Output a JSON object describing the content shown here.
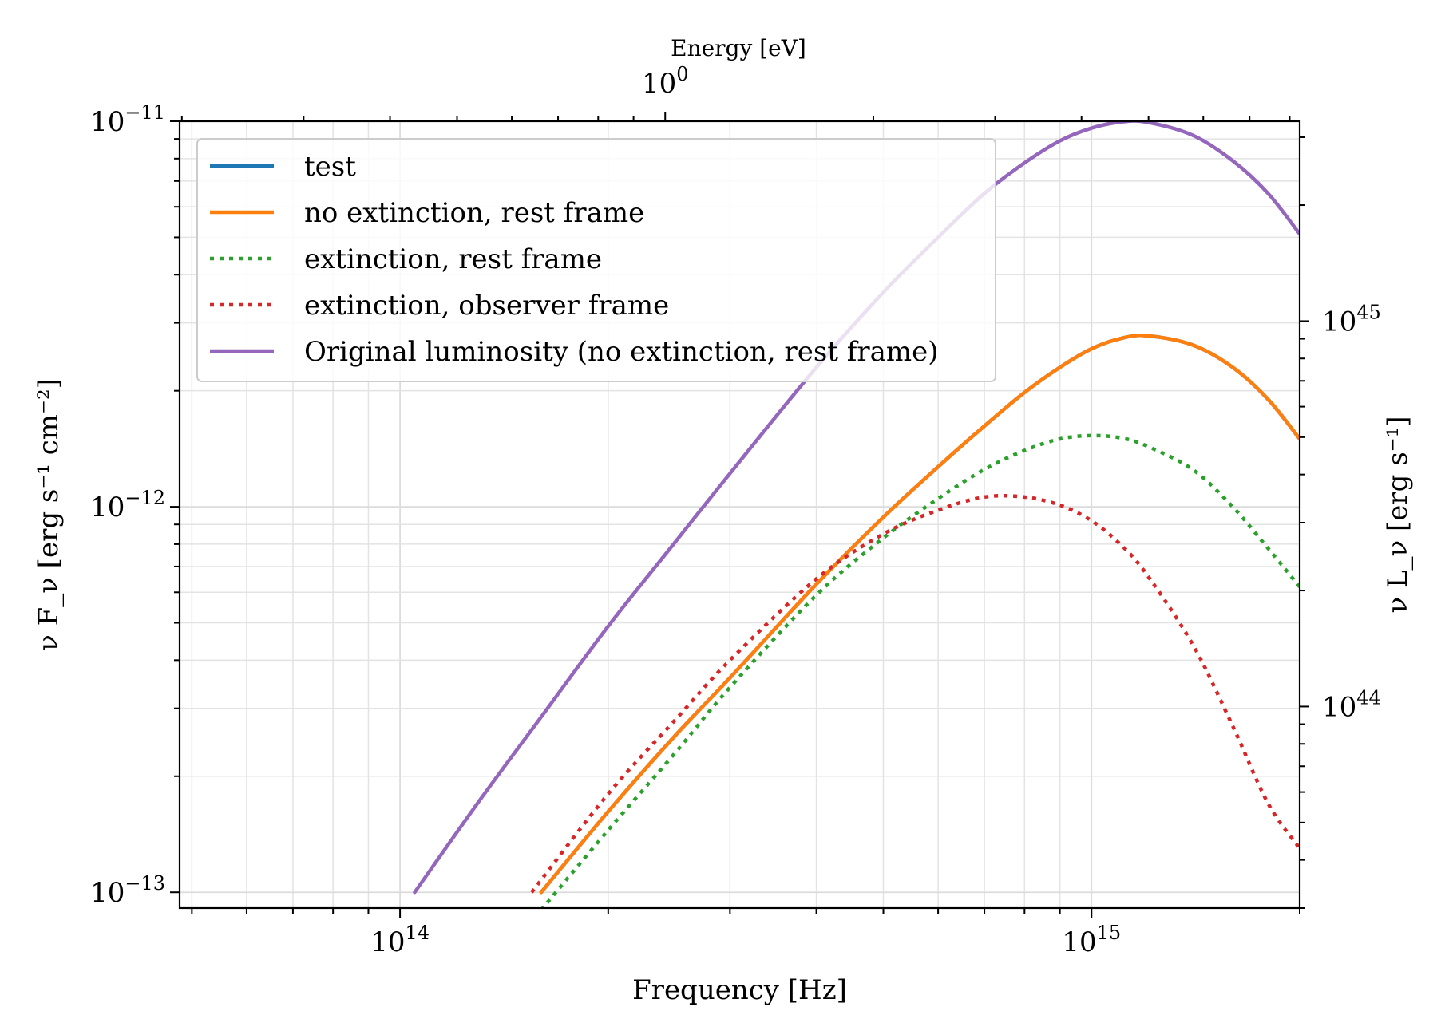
{
  "chart_data": {
    "type": "line",
    "xlabel": "Frequency [Hz]",
    "ylabel": "ν F_ν [erg s⁻¹ cm⁻²]",
    "y2label": "ν L_ν [erg s⁻¹]",
    "top_xlabel": "Energy [eV]",
    "xscale": "log",
    "yscale": "log",
    "xlim": [
      48000000000000.0,
      2000000000000000.0
    ],
    "ylim": [
      9.1e-14,
      1e-11
    ],
    "y2lim": [
      3e+43,
      3.3e+45
    ],
    "grid": true,
    "legend_position": "top-left",
    "x_ticks": [
      {
        "value": 100000000000000.0,
        "base": "10",
        "exp": "14"
      },
      {
        "value": 1000000000000000.0,
        "base": "10",
        "exp": "15"
      }
    ],
    "y_ticks": [
      {
        "value": 1e-13,
        "base": "10",
        "exp": "−13"
      },
      {
        "value": 1e-12,
        "base": "10",
        "exp": "−12"
      },
      {
        "value": 1e-11,
        "base": "10",
        "exp": "−11"
      }
    ],
    "y2_ticks": [
      {
        "value": 1e+44,
        "base": "10",
        "exp": "44"
      },
      {
        "value": 1e+45,
        "base": "10",
        "exp": "45"
      }
    ],
    "top_ticks": [
      {
        "value_eV": 1,
        "base": "10",
        "exp": "0"
      }
    ],
    "series": [
      {
        "name": "test",
        "color": "#1f77b4",
        "dash": "solid",
        "x": [
          160000000000000.0,
          200000000000000.0,
          250000000000000.0,
          300000000000000.0,
          400000000000000.0,
          500000000000000.0,
          600000000000000.0,
          700000000000000.0,
          800000000000000.0,
          900000000000000.0,
          1000000000000000.0,
          1100000000000000.0,
          1200000000000000.0,
          1400000000000000.0,
          1600000000000000.0,
          1800000000000000.0,
          2000000000000000.0
        ],
        "y": [
          1e-13,
          1.62e-13,
          2.55e-13,
          3.6e-13,
          6.3e-13,
          9.4e-13,
          1.27e-12,
          1.62e-12,
          1.98e-12,
          2.3e-12,
          2.57e-12,
          2.73e-12,
          2.78e-12,
          2.63e-12,
          2.3e-12,
          1.9e-12,
          1.5e-12
        ]
      },
      {
        "name": "no extinction, rest frame",
        "color": "#ff7f0e",
        "dash": "solid",
        "x": [
          160000000000000.0,
          200000000000000.0,
          250000000000000.0,
          300000000000000.0,
          400000000000000.0,
          500000000000000.0,
          600000000000000.0,
          700000000000000.0,
          800000000000000.0,
          900000000000000.0,
          1000000000000000.0,
          1100000000000000.0,
          1200000000000000.0,
          1400000000000000.0,
          1600000000000000.0,
          1800000000000000.0,
          2000000000000000.0
        ],
        "y": [
          1e-13,
          1.62e-13,
          2.55e-13,
          3.6e-13,
          6.3e-13,
          9.4e-13,
          1.27e-12,
          1.62e-12,
          1.98e-12,
          2.3e-12,
          2.57e-12,
          2.73e-12,
          2.78e-12,
          2.63e-12,
          2.3e-12,
          1.9e-12,
          1.5e-12
        ]
      },
      {
        "name": "extinction, rest frame",
        "color": "#2ca02c",
        "dash": "dotted",
        "x": [
          160000000000000.0,
          200000000000000.0,
          250000000000000.0,
          300000000000000.0,
          400000000000000.0,
          500000000000000.0,
          600000000000000.0,
          700000000000000.0,
          800000000000000.0,
          900000000000000.0,
          1000000000000000.0,
          1100000000000000.0,
          1200000000000000.0,
          1400000000000000.0,
          1600000000000000.0,
          1800000000000000.0,
          2000000000000000.0
        ],
        "y": [
          9e-14,
          1.45e-13,
          2.3e-13,
          3.4e-13,
          5.9e-13,
          8.3e-13,
          1.05e-12,
          1.25e-12,
          1.4e-12,
          1.5e-12,
          1.53e-12,
          1.51e-12,
          1.44e-12,
          1.25e-12,
          1e-12,
          7.8e-13,
          6.2e-13
        ]
      },
      {
        "name": "extinction, observer frame",
        "color": "#d62728",
        "dash": "dotted",
        "x": [
          155000000000000.0,
          200000000000000.0,
          250000000000000.0,
          300000000000000.0,
          400000000000000.0,
          500000000000000.0,
          600000000000000.0,
          700000000000000.0,
          800000000000000.0,
          900000000000000.0,
          1000000000000000.0,
          1100000000000000.0,
          1200000000000000.0,
          1400000000000000.0,
          1600000000000000.0,
          1800000000000000.0,
          2000000000000000.0
        ],
        "y": [
          1e-13,
          1.8e-13,
          2.8e-13,
          4e-13,
          6.5e-13,
          8.5e-13,
          9.8e-13,
          1.06e-12,
          1.06e-12,
          1.01e-12,
          9.2e-13,
          8e-13,
          6.7e-13,
          4.4e-13,
          2.7e-13,
          1.7e-13,
          1.3e-13
        ]
      },
      {
        "name": "Original luminosity (no extinction, rest frame)",
        "color": "#9467bd",
        "dash": "solid",
        "x": [
          105000000000000.0,
          130000000000000.0,
          160000000000000.0,
          200000000000000.0,
          250000000000000.0,
          300000000000000.0,
          400000000000000.0,
          500000000000000.0,
          600000000000000.0,
          700000000000000.0,
          800000000000000.0,
          900000000000000.0,
          1000000000000000.0,
          1100000000000000.0,
          1200000000000000.0,
          1400000000000000.0,
          1600000000000000.0,
          1800000000000000.0,
          2000000000000000.0
        ],
        "y": [
          1e-13,
          1.72e-13,
          2.85e-13,
          4.9e-13,
          8.1e-13,
          1.22e-12,
          2.3e-12,
          3.6e-12,
          5e-12,
          6.5e-12,
          7.8e-12,
          8.9e-12,
          9.6e-12,
          9.95e-12,
          9.95e-12,
          9.2e-12,
          7.9e-12,
          6.5e-12,
          5.1e-12
        ]
      }
    ]
  }
}
